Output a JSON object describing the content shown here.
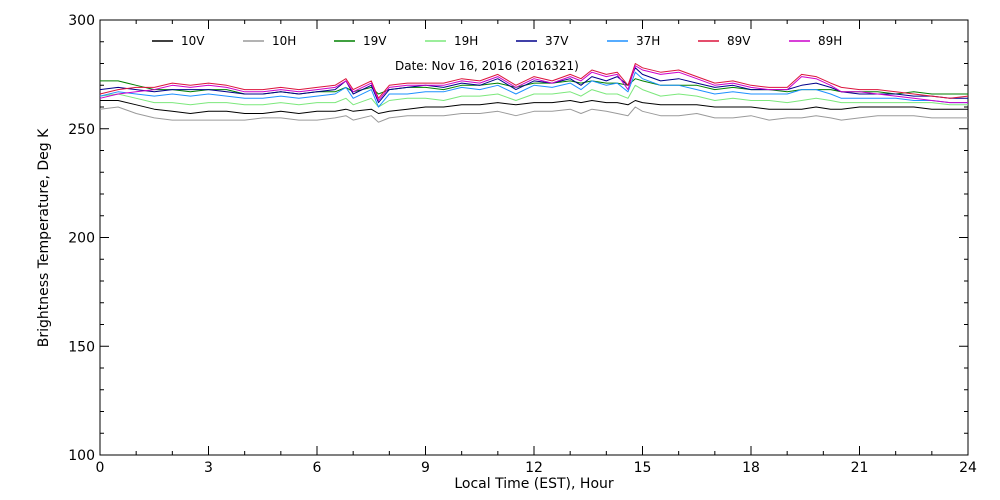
{
  "chart_data": {
    "type": "line",
    "title": "",
    "annotation": "Date: Nov 16, 2016 (2016321)",
    "xlabel": "Local Time (EST), Hour",
    "ylabel": "Brightness Temperature, Deg K",
    "xlim": [
      0,
      24
    ],
    "ylim": [
      100,
      300
    ],
    "xticks": [
      0,
      3,
      6,
      9,
      12,
      15,
      18,
      21,
      24
    ],
    "yticks": [
      100,
      150,
      200,
      250,
      300
    ],
    "grid": false,
    "legend_position": "top",
    "x": [
      0,
      0.5,
      1,
      1.5,
      2,
      2.5,
      3,
      3.5,
      4,
      4.5,
      5,
      5.5,
      6,
      6.5,
      6.8,
      7,
      7.5,
      7.7,
      8,
      8.5,
      9,
      9.5,
      10,
      10.5,
      11,
      11.5,
      12,
      12.5,
      13,
      13.3,
      13.6,
      14,
      14.3,
      14.6,
      14.8,
      15,
      15.5,
      16,
      16.5,
      17,
      17.5,
      18,
      18.5,
      19,
      19.4,
      19.8,
      20.2,
      20.5,
      21,
      21.5,
      22,
      22.5,
      23,
      23.5,
      24
    ],
    "series": [
      {
        "name": "10V",
        "color": "#000000",
        "values": [
          263,
          263,
          261,
          259,
          258,
          257,
          258,
          258,
          257,
          257,
          258,
          257,
          258,
          258,
          259,
          258,
          259,
          257,
          258,
          259,
          260,
          260,
          261,
          261,
          262,
          261,
          262,
          262,
          263,
          262,
          263,
          262,
          262,
          261,
          263,
          262,
          261,
          261,
          261,
          260,
          260,
          260,
          259,
          259,
          259,
          260,
          259,
          259,
          260,
          260,
          260,
          260,
          259,
          259,
          259
        ]
      },
      {
        "name": "10H",
        "color": "#9a9a9a",
        "values": [
          259,
          260,
          257,
          255,
          254,
          254,
          254,
          254,
          254,
          255,
          255,
          254,
          254,
          255,
          256,
          254,
          256,
          253,
          255,
          256,
          256,
          256,
          257,
          257,
          258,
          256,
          258,
          258,
          259,
          257,
          259,
          258,
          257,
          256,
          260,
          258,
          256,
          256,
          257,
          255,
          255,
          256,
          254,
          255,
          255,
          256,
          255,
          254,
          255,
          256,
          256,
          256,
          255,
          255,
          255
        ]
      },
      {
        "name": "19V",
        "color": "#008000",
        "values": [
          272,
          272,
          270,
          268,
          268,
          267,
          268,
          268,
          266,
          266,
          267,
          266,
          267,
          267,
          269,
          267,
          269,
          266,
          268,
          269,
          269,
          268,
          270,
          270,
          271,
          269,
          271,
          271,
          272,
          271,
          272,
          271,
          271,
          270,
          273,
          272,
          270,
          270,
          270,
          268,
          269,
          268,
          268,
          267,
          268,
          268,
          268,
          267,
          267,
          267,
          266,
          267,
          266,
          266,
          266
        ]
      },
      {
        "name": "19H",
        "color": "#7ce87c",
        "values": [
          265,
          266,
          264,
          262,
          262,
          261,
          262,
          262,
          261,
          261,
          262,
          261,
          262,
          262,
          264,
          261,
          264,
          260,
          263,
          264,
          264,
          263,
          265,
          265,
          266,
          263,
          266,
          266,
          267,
          265,
          268,
          266,
          266,
          264,
          270,
          268,
          265,
          266,
          265,
          263,
          264,
          263,
          263,
          262,
          263,
          264,
          263,
          262,
          262,
          262,
          262,
          262,
          262,
          261,
          261
        ]
      },
      {
        "name": "37V",
        "color": "#00008b",
        "values": [
          268,
          269,
          268,
          267,
          268,
          268,
          268,
          267,
          266,
          266,
          267,
          266,
          267,
          268,
          272,
          266,
          270,
          262,
          268,
          269,
          270,
          269,
          271,
          270,
          273,
          268,
          272,
          271,
          273,
          270,
          274,
          272,
          274,
          270,
          278,
          275,
          272,
          273,
          271,
          269,
          270,
          268,
          268,
          268,
          270,
          271,
          269,
          267,
          266,
          266,
          266,
          265,
          265,
          264,
          264
        ]
      },
      {
        "name": "37H",
        "color": "#1e90ff",
        "values": [
          265,
          267,
          266,
          265,
          266,
          265,
          266,
          265,
          264,
          264,
          265,
          264,
          265,
          266,
          269,
          264,
          268,
          260,
          266,
          266,
          267,
          267,
          269,
          268,
          270,
          266,
          270,
          269,
          271,
          268,
          272,
          270,
          271,
          267,
          276,
          273,
          270,
          270,
          268,
          266,
          267,
          266,
          266,
          266,
          268,
          268,
          266,
          264,
          264,
          264,
          264,
          263,
          263,
          262,
          262
        ]
      },
      {
        "name": "89V",
        "color": "#dc143c",
        "values": [
          266,
          268,
          269,
          269,
          271,
          270,
          271,
          270,
          268,
          268,
          269,
          268,
          269,
          270,
          273,
          268,
          272,
          264,
          270,
          271,
          271,
          271,
          273,
          272,
          275,
          270,
          274,
          272,
          275,
          273,
          277,
          275,
          276,
          270,
          280,
          278,
          276,
          277,
          274,
          271,
          272,
          270,
          269,
          269,
          275,
          274,
          271,
          269,
          268,
          268,
          267,
          266,
          265,
          264,
          265
        ]
      },
      {
        "name": "89H",
        "color": "#cc00cc",
        "values": [
          264,
          266,
          267,
          268,
          270,
          269,
          270,
          269,
          267,
          267,
          268,
          267,
          268,
          269,
          272,
          267,
          271,
          263,
          269,
          270,
          270,
          270,
          272,
          271,
          274,
          269,
          273,
          271,
          274,
          272,
          276,
          274,
          275,
          268,
          279,
          277,
          275,
          276,
          273,
          270,
          271,
          269,
          268,
          268,
          274,
          273,
          270,
          267,
          267,
          266,
          265,
          264,
          263,
          262,
          262
        ]
      }
    ]
  }
}
